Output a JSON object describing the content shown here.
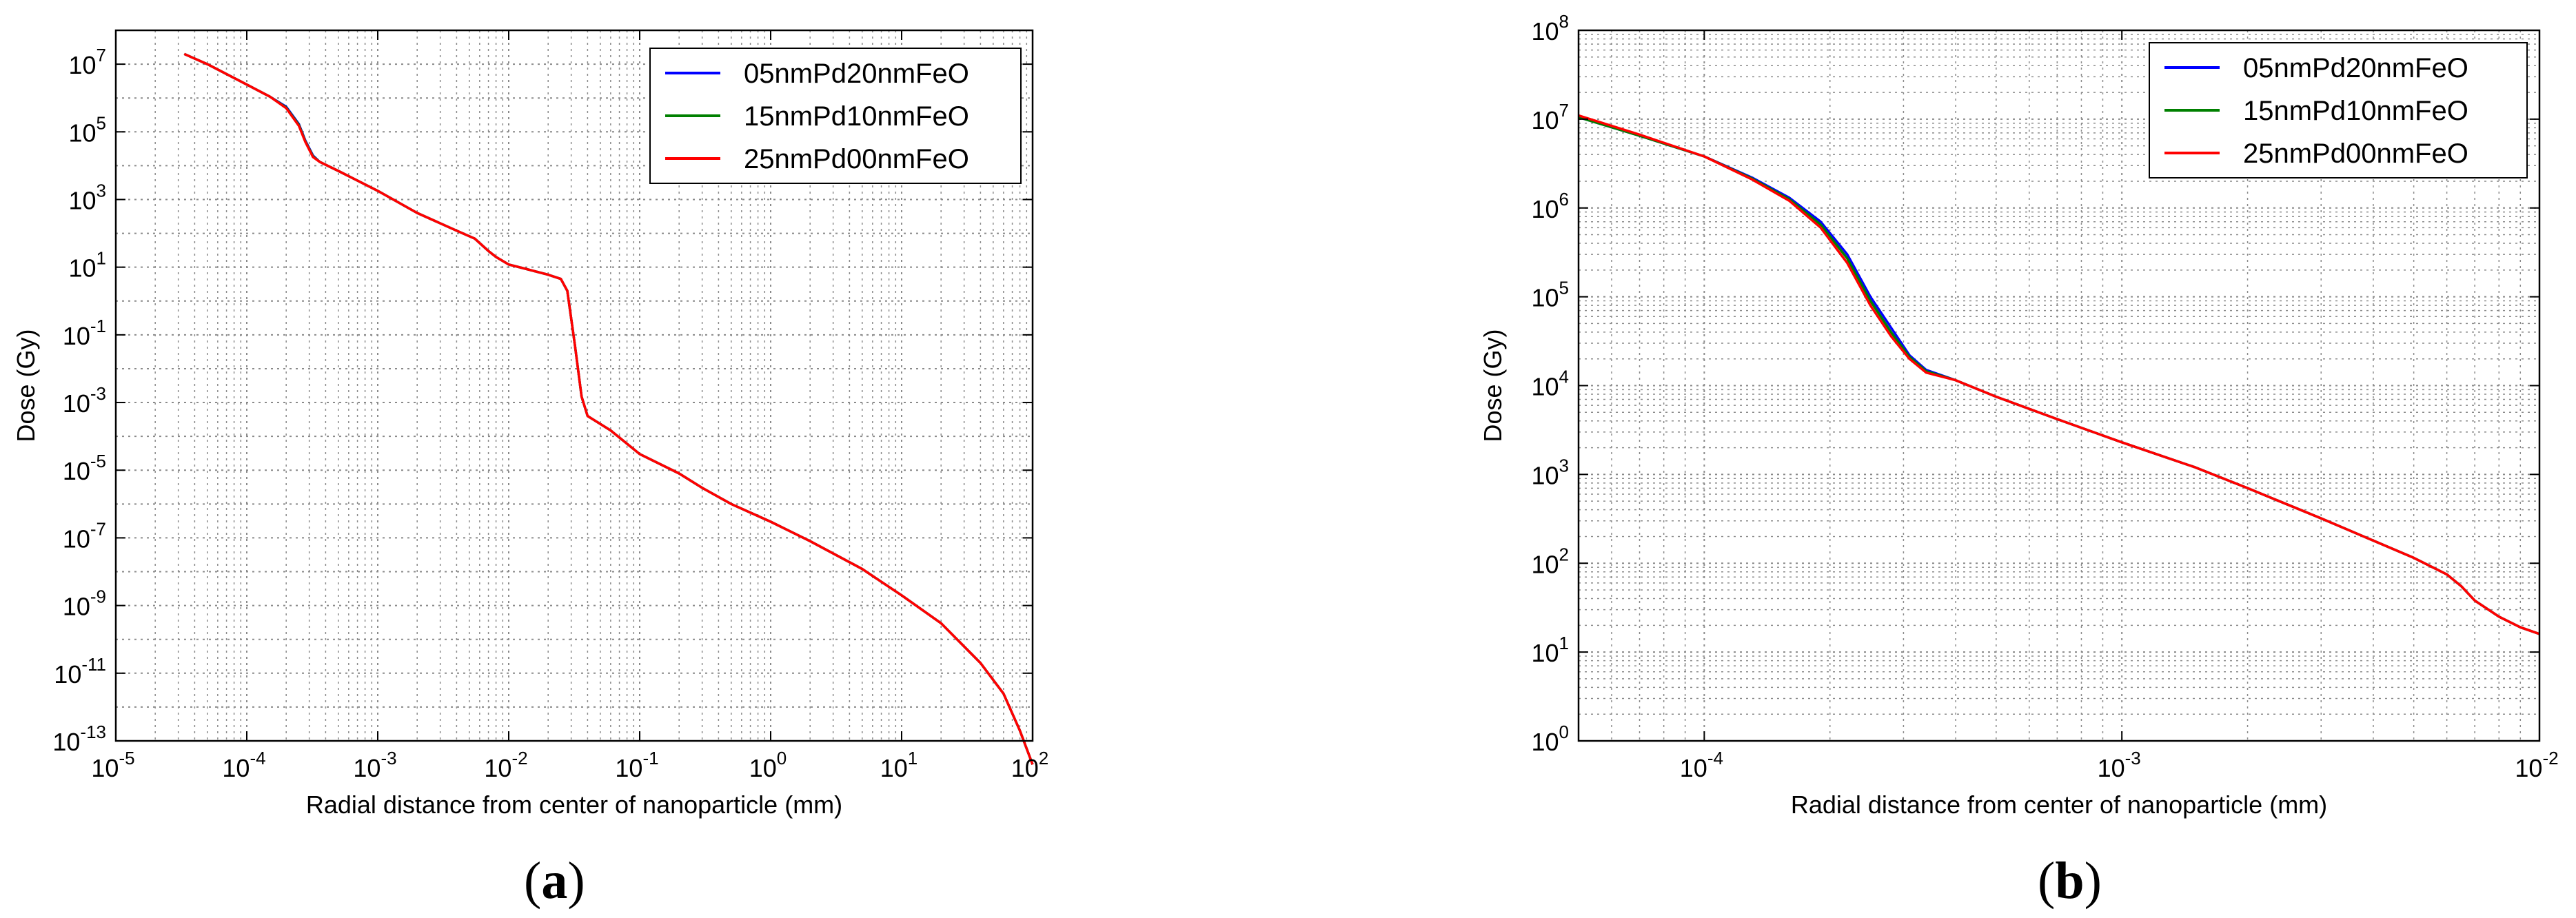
{
  "chart_data": [
    {
      "type": "line",
      "panel_label": "a",
      "xlabel": "Radial distance from center of nanoparticle (mm)",
      "ylabel": "Dose (Gy)",
      "x_scale": "log",
      "y_scale": "log",
      "xlim": [
        1e-05,
        100
      ],
      "ylim": [
        1e-13,
        100000000.0
      ],
      "x_ticks": [
        "10-5",
        "10-4",
        "10-3",
        "10-2",
        "10-1",
        "10^0",
        "10^1",
        "10^2"
      ],
      "y_ticks": [
        "10-13",
        "10-11",
        "10-9",
        "10-7",
        "10-5",
        "10-3",
        "10-1",
        "10^1",
        "10^3",
        "10^5",
        "10^7"
      ],
      "grid": true,
      "legend_position": "top-right",
      "series": [
        {
          "name": "05nmPd20nmFeO",
          "color": "#0000ff",
          "x": [
            3.33e-05,
            5e-05,
            0.0001,
            0.00015,
            0.0002,
            0.00025,
            0.00028,
            0.00032,
            0.00036,
            0.0005,
            0.001,
            0.002,
            0.004,
            0.0055,
            0.007,
            0.008,
            0.01,
            0.015,
            0.02,
            0.025,
            0.028,
            0.032,
            0.036,
            0.04,
            0.045,
            0.06,
            0.1,
            0.2,
            0.3,
            0.5,
            1,
            2,
            5,
            10,
            20,
            40,
            60,
            80,
            100
          ],
          "y": [
            20000000,
            10000000,
            2500000,
            1100000,
            550000,
            170000,
            55000,
            20000,
            13000,
            7000,
            1800,
            400,
            120,
            70,
            30,
            20,
            12,
            8,
            6,
            4.5,
            2,
            0.05,
            0.0015,
            0.0004,
            0.0003,
            0.00015,
            3e-05,
            8e-06,
            3e-06,
            1e-06,
            3e-07,
            8e-08,
            1.2e-08,
            2e-09,
            3e-10,
            2e-11,
            2.5e-12,
            2e-13,
            2e-14
          ]
        },
        {
          "name": "15nmPd10nmFeO",
          "color": "#008000",
          "x": [
            3.33e-05,
            5e-05,
            0.0001,
            0.00015,
            0.0002,
            0.00025,
            0.00028,
            0.00032,
            0.00036,
            0.0005,
            0.001,
            0.002,
            0.004,
            0.0055,
            0.007,
            0.008,
            0.01,
            0.015,
            0.02,
            0.025,
            0.028,
            0.032,
            0.036,
            0.04,
            0.045,
            0.06,
            0.1,
            0.2,
            0.3,
            0.5,
            1,
            2,
            5,
            10,
            20,
            40,
            60,
            80,
            100
          ],
          "y": [
            20000000,
            10000000,
            2500000,
            1100000,
            520000,
            160000,
            52000,
            19000,
            13000,
            7000,
            1800,
            400,
            120,
            70,
            30,
            20,
            12,
            8,
            6,
            4.5,
            2,
            0.05,
            0.0015,
            0.0004,
            0.0003,
            0.00015,
            3e-05,
            8e-06,
            3e-06,
            1e-06,
            3e-07,
            8e-08,
            1.2e-08,
            2e-09,
            3e-10,
            2e-11,
            2.5e-12,
            2e-13,
            2e-14
          ]
        },
        {
          "name": "25nmPd00nmFeO",
          "color": "#ff0000",
          "x": [
            3.33e-05,
            5e-05,
            0.0001,
            0.00015,
            0.0002,
            0.00025,
            0.00028,
            0.00032,
            0.00036,
            0.0005,
            0.001,
            0.002,
            0.004,
            0.0055,
            0.007,
            0.008,
            0.01,
            0.015,
            0.02,
            0.025,
            0.028,
            0.032,
            0.036,
            0.04,
            0.045,
            0.06,
            0.1,
            0.2,
            0.3,
            0.5,
            1,
            2,
            5,
            10,
            20,
            40,
            60,
            80,
            100
          ],
          "y": [
            20000000,
            10000000,
            2500000,
            1100000,
            500000,
            150000,
            50000,
            18000,
            13000,
            7000,
            1800,
            400,
            120,
            70,
            30,
            20,
            12,
            8,
            6,
            4.5,
            2,
            0.05,
            0.0015,
            0.0004,
            0.0003,
            0.00015,
            3e-05,
            8e-06,
            3e-06,
            1e-06,
            3e-07,
            8e-08,
            1.2e-08,
            2e-09,
            3e-10,
            2e-11,
            2.5e-12,
            2e-13,
            2e-14
          ]
        }
      ]
    },
    {
      "type": "line",
      "panel_label": "b",
      "xlabel": "Radial distance from center of nanoparticle (mm)",
      "ylabel": "Dose (Gy)",
      "x_scale": "log",
      "y_scale": "log",
      "xlim": [
        5e-05,
        0.01
      ],
      "ylim": [
        1,
        100000000.0
      ],
      "x_ticks": [
        "10-4",
        "10-3",
        "10-2"
      ],
      "y_ticks": [
        "10^0",
        "10^1",
        "10^2",
        "10^3",
        "10^4",
        "10^5",
        "10^6",
        "10^7",
        "10^8"
      ],
      "grid": true,
      "legend_position": "top-right",
      "series": [
        {
          "name": "05nmPd20nmFeO",
          "color": "#0000ff",
          "x": [
            5e-05,
            7e-05,
            0.0001,
            0.00013,
            0.00016,
            0.00019,
            0.00022,
            0.00025,
            0.00028,
            0.00031,
            0.00034,
            0.0004,
            0.0005,
            0.0007,
            0.001,
            0.0015,
            0.002,
            0.003,
            0.004,
            0.005,
            0.006,
            0.0065,
            0.007,
            0.008,
            0.009,
            0.01
          ],
          "y": [
            10500000,
            6500000,
            3800000,
            2200000,
            1300000,
            700000,
            300000,
            100000,
            45000,
            22000,
            15000,
            11500,
            7500,
            4200,
            2300,
            1200,
            700,
            320,
            180,
            115,
            75,
            55,
            38,
            25,
            19,
            16
          ]
        },
        {
          "name": "15nmPd10nmFeO",
          "color": "#008000",
          "x": [
            5e-05,
            7e-05,
            0.0001,
            0.00013,
            0.00016,
            0.00019,
            0.00022,
            0.00025,
            0.00028,
            0.00031,
            0.00034,
            0.0004,
            0.0005,
            0.0007,
            0.001,
            0.0015,
            0.002,
            0.003,
            0.004,
            0.005,
            0.006,
            0.0065,
            0.007,
            0.008,
            0.009,
            0.01
          ],
          "y": [
            10500000,
            6500000,
            3800000,
            2150000,
            1250000,
            650000,
            270000,
            90000,
            40000,
            21000,
            14500,
            11500,
            7500,
            4200,
            2300,
            1200,
            700,
            320,
            180,
            115,
            75,
            55,
            38,
            25,
            19,
            16
          ]
        },
        {
          "name": "25nmPd00nmFeO",
          "color": "#ff0000",
          "x": [
            5e-05,
            7e-05,
            0.0001,
            0.00013,
            0.00016,
            0.00019,
            0.00022,
            0.00025,
            0.00028,
            0.00031,
            0.00034,
            0.0004,
            0.0005,
            0.0007,
            0.001,
            0.0015,
            0.002,
            0.003,
            0.004,
            0.005,
            0.006,
            0.0065,
            0.007,
            0.008,
            0.009,
            0.01
          ],
          "y": [
            11000000,
            6700000,
            3800000,
            2100000,
            1200000,
            600000,
            240000,
            80000,
            36000,
            20000,
            14000,
            11500,
            7500,
            4200,
            2300,
            1200,
            700,
            320,
            180,
            115,
            75,
            55,
            38,
            25,
            19,
            16
          ]
        }
      ]
    }
  ]
}
